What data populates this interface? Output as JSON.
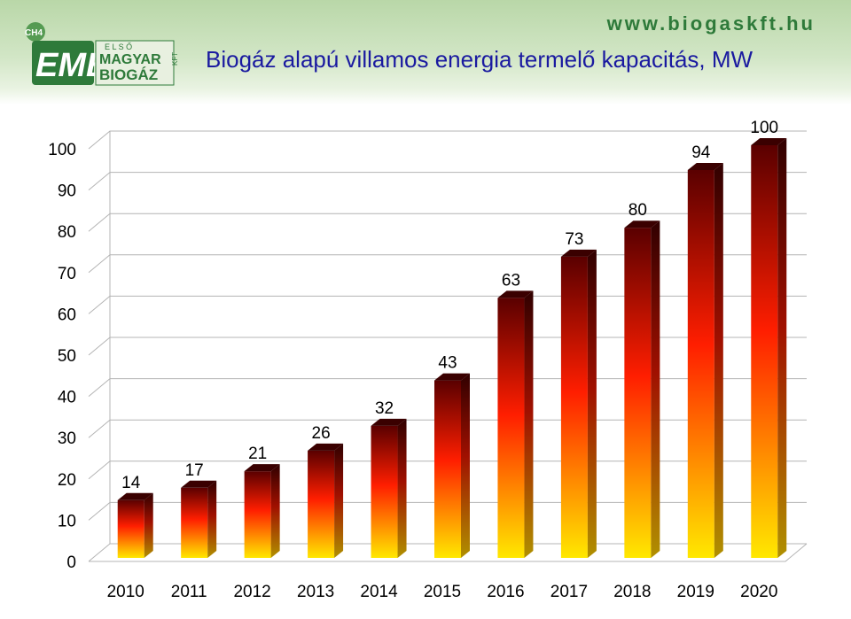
{
  "header": {
    "url": "www.biogaskft.hu",
    "title": "Biogáz alapú villamos energia termelő kapacitás, MW",
    "logo": {
      "text_ch4": "CH4",
      "text_emb": "EMB",
      "text_elso": "E L S Ő",
      "text_magyar": "MAGYAR",
      "text_biogaz": "BIOGÁZ",
      "text_kft": "KFT"
    }
  },
  "colors": {
    "bar_top": "#5a0000",
    "bar_mid": "#ff1e00",
    "bar_bottom": "#ffe800",
    "title": "#1a1aa0",
    "brand_green": "#2e7a3a"
  },
  "chart_data": {
    "type": "bar",
    "title": "Biogáz alapú villamos energia termelő kapacitás, MW",
    "categories": [
      "2010",
      "2011",
      "2012",
      "2013",
      "2014",
      "2015",
      "2016",
      "2017",
      "2018",
      "2019",
      "2020"
    ],
    "values": [
      14,
      17,
      21,
      26,
      32,
      43,
      63,
      73,
      80,
      94,
      100
    ],
    "ylim": [
      0,
      100
    ],
    "yticks": [
      0,
      10,
      20,
      30,
      40,
      50,
      60,
      70,
      80,
      90,
      100
    ],
    "grid": true,
    "legend": "none",
    "xlabel": "",
    "ylabel": ""
  }
}
